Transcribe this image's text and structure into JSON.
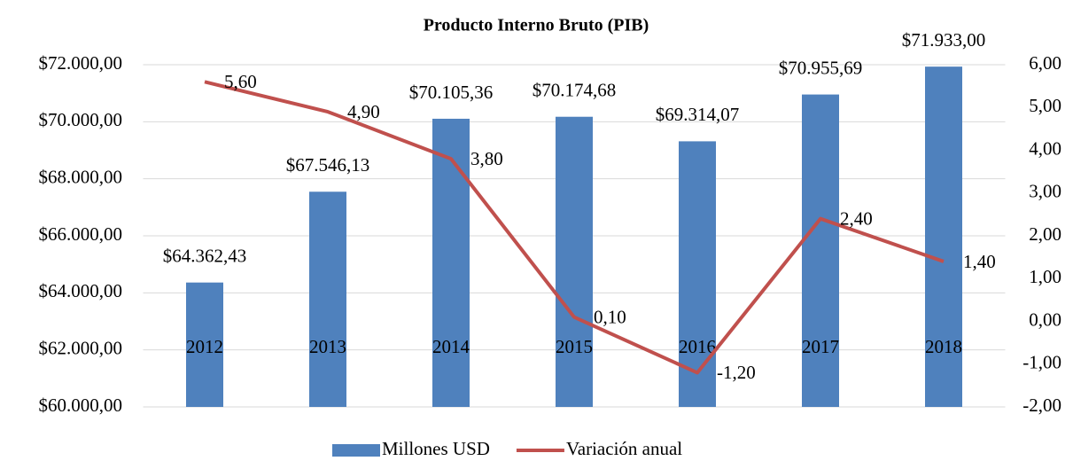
{
  "chart_data": {
    "type": "combo",
    "title": "Producto Interno Bruto (PIB)",
    "categories": [
      "2012",
      "2013",
      "2014",
      "2015",
      "2016",
      "2017",
      "2018"
    ],
    "series": [
      {
        "name": "Millones USD",
        "type": "bar",
        "color": "#4f81bd",
        "values": [
          64362.43,
          67546.13,
          70105.36,
          70174.68,
          69314.07,
          70955.69,
          71933.0
        ],
        "value_labels": [
          "$64.362,43",
          "$67.546,13",
          "$70.105,36",
          "$70.174,68",
          "$69.314,07",
          "$70.955,69",
          "$71.933,00"
        ]
      },
      {
        "name": "Variación anual",
        "type": "line",
        "axis": "y2",
        "color": "#c0504d",
        "values": [
          5.6,
          4.9,
          3.8,
          0.1,
          -1.2,
          2.4,
          1.4
        ],
        "value_labels": [
          "5,60",
          "4,90",
          "3,80",
          "0,10",
          "-1,20",
          "2,40",
          "1,40"
        ]
      }
    ],
    "ylim": [
      60000,
      72000
    ],
    "yticks": [
      {
        "value": 60000,
        "label": "$60.000,00"
      },
      {
        "value": 62000,
        "label": "$62.000,00"
      },
      {
        "value": 64000,
        "label": "$64.000,00"
      },
      {
        "value": 66000,
        "label": "$66.000,00"
      },
      {
        "value": 68000,
        "label": "$68.000,00"
      },
      {
        "value": 70000,
        "label": "$70.000,00"
      },
      {
        "value": 72000,
        "label": "$72.000,00"
      }
    ],
    "y2lim": [
      -2,
      6
    ],
    "y2ticks": [
      {
        "value": -2,
        "label": "-2,00"
      },
      {
        "value": -1,
        "label": "-1,00"
      },
      {
        "value": 0,
        "label": "0,00"
      },
      {
        "value": 1,
        "label": "1,00"
      },
      {
        "value": 2,
        "label": "2,00"
      },
      {
        "value": 3,
        "label": "3,00"
      },
      {
        "value": 4,
        "label": "4,00"
      },
      {
        "value": 5,
        "label": "5,00"
      },
      {
        "value": 6,
        "label": "6,00"
      }
    ],
    "grid": true,
    "legend": "bottom"
  }
}
